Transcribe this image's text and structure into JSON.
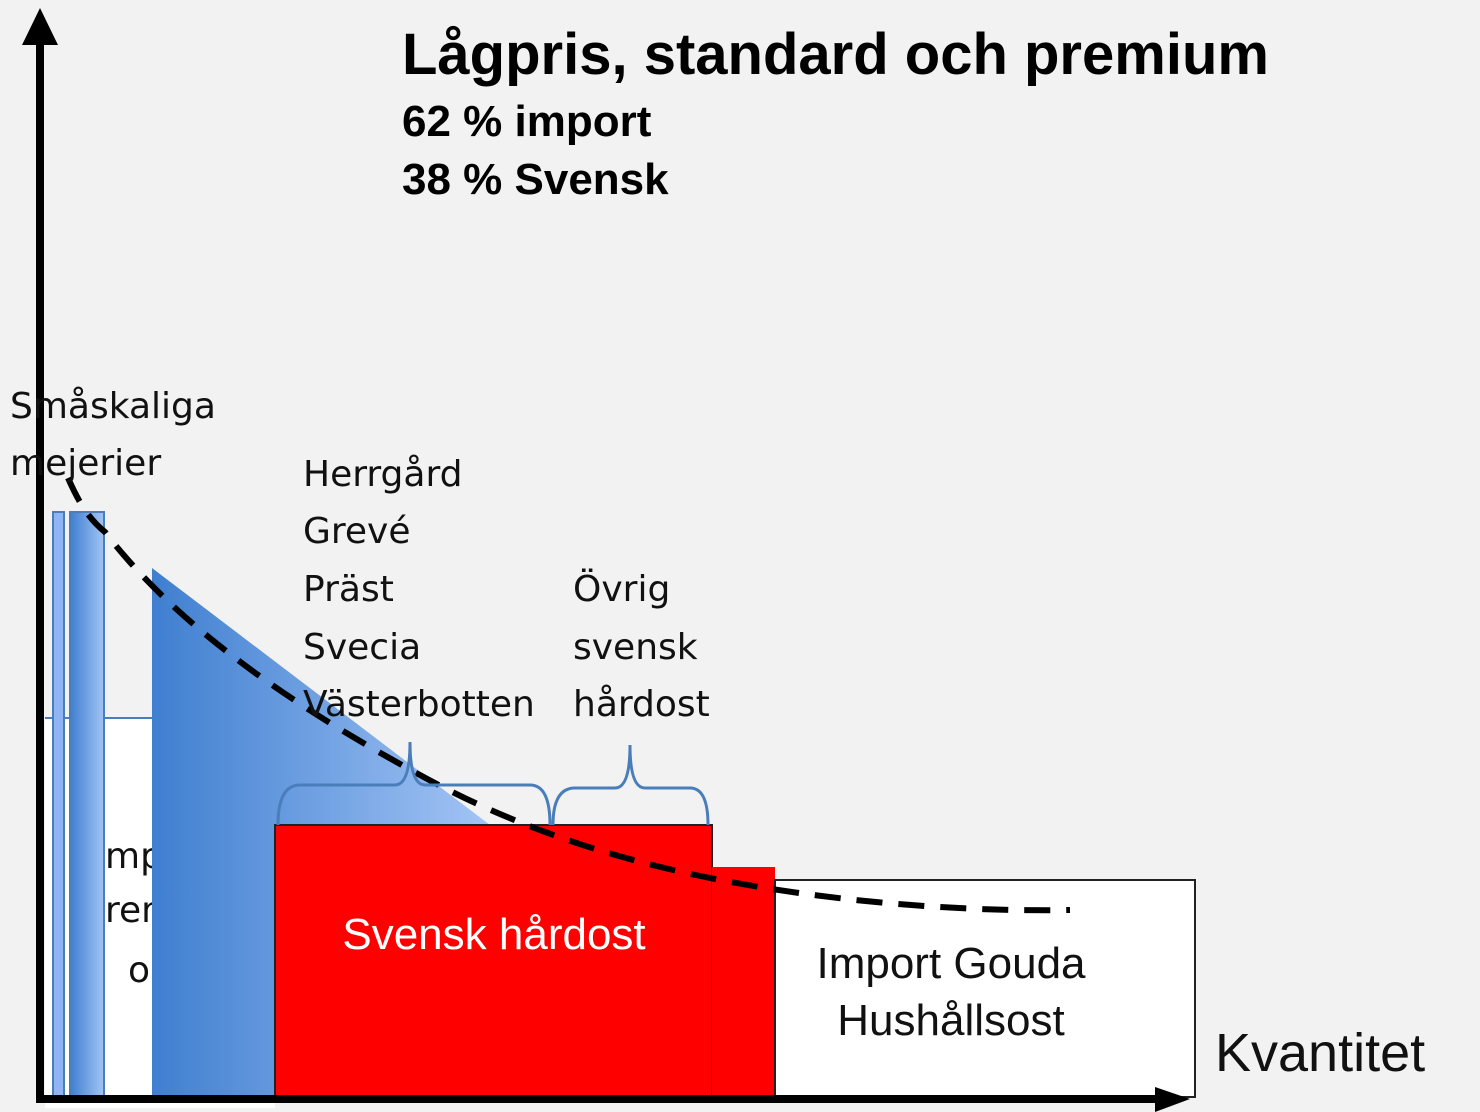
{
  "title": "Lågpris, standard och premium",
  "subtitle_lines": [
    "62 % import",
    "38 % Svensk"
  ],
  "small_dairies": [
    "Småskaliga",
    "mejerier"
  ],
  "hidden_label_fragments": [
    "mp",
    "ren",
    "o"
  ],
  "brands": [
    "Herrgård",
    "Grevé",
    "Präst",
    "Svecia",
    "Västerbotten"
  ],
  "other_swedish": [
    "Övrig",
    "svensk",
    "hårdost"
  ],
  "swedish_block": "Svensk hårdost",
  "import_block": [
    "Import Gouda",
    "Hushållsost"
  ],
  "x_axis_label": "Kvantitet"
}
